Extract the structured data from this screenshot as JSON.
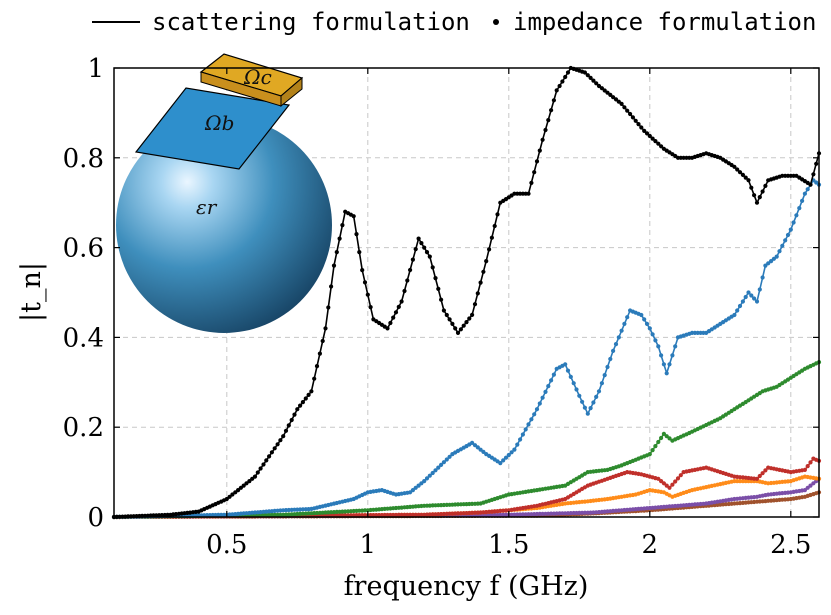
{
  "chart_data": {
    "type": "line",
    "xlabel": "frequency f (GHz)",
    "ylabel": "|t_n|",
    "xlim": [
      0.1,
      2.6
    ],
    "ylim": [
      0,
      1
    ],
    "xticks": [
      0.5,
      1,
      1.5,
      2,
      2.5
    ],
    "yticks": [
      0,
      0.2,
      0.4,
      0.6,
      0.8,
      1
    ],
    "xtick_labels": [
      "0.5",
      "1",
      "1.5",
      "2",
      "2.5"
    ],
    "ytick_labels": [
      "0",
      "0.2",
      "0.4",
      "0.6",
      "0.8",
      "1"
    ],
    "grid": true,
    "legend": {
      "placement": "top, outside plot",
      "entries": [
        {
          "label": "scattering formulation",
          "marker": "line"
        },
        {
          "label": "impedance formulation",
          "marker": "dot"
        }
      ]
    },
    "inset_labels": {
      "omega_c": "Ωc",
      "omega_b": "Ωb",
      "epsilon_r": "εr"
    },
    "series": [
      {
        "color": "#000000",
        "points": [
          [
            0.1,
            0.0
          ],
          [
            0.3,
            0.005
          ],
          [
            0.4,
            0.012
          ],
          [
            0.5,
            0.04
          ],
          [
            0.6,
            0.09
          ],
          [
            0.7,
            0.18
          ],
          [
            0.75,
            0.24
          ],
          [
            0.8,
            0.28
          ],
          [
            0.85,
            0.42
          ],
          [
            0.88,
            0.56
          ],
          [
            0.92,
            0.68
          ],
          [
            0.95,
            0.67
          ],
          [
            0.98,
            0.55
          ],
          [
            1.02,
            0.44
          ],
          [
            1.07,
            0.42
          ],
          [
            1.12,
            0.48
          ],
          [
            1.18,
            0.62
          ],
          [
            1.22,
            0.58
          ],
          [
            1.27,
            0.46
          ],
          [
            1.32,
            0.41
          ],
          [
            1.37,
            0.45
          ],
          [
            1.42,
            0.57
          ],
          [
            1.47,
            0.7
          ],
          [
            1.52,
            0.72
          ],
          [
            1.57,
            0.72
          ],
          [
            1.62,
            0.84
          ],
          [
            1.67,
            0.95
          ],
          [
            1.72,
            1.0
          ],
          [
            1.77,
            0.99
          ],
          [
            1.82,
            0.96
          ],
          [
            1.9,
            0.92
          ],
          [
            1.98,
            0.86
          ],
          [
            2.05,
            0.82
          ],
          [
            2.1,
            0.8
          ],
          [
            2.15,
            0.8
          ],
          [
            2.2,
            0.81
          ],
          [
            2.25,
            0.8
          ],
          [
            2.3,
            0.78
          ],
          [
            2.35,
            0.75
          ],
          [
            2.38,
            0.7
          ],
          [
            2.42,
            0.75
          ],
          [
            2.47,
            0.76
          ],
          [
            2.52,
            0.76
          ],
          [
            2.57,
            0.74
          ],
          [
            2.6,
            0.81
          ]
        ]
      },
      {
        "color": "#2b7bba",
        "points": [
          [
            0.1,
            0.0
          ],
          [
            0.5,
            0.005
          ],
          [
            0.7,
            0.015
          ],
          [
            0.8,
            0.018
          ],
          [
            0.95,
            0.04
          ],
          [
            1.0,
            0.055
          ],
          [
            1.05,
            0.06
          ],
          [
            1.1,
            0.05
          ],
          [
            1.15,
            0.055
          ],
          [
            1.2,
            0.08
          ],
          [
            1.3,
            0.14
          ],
          [
            1.37,
            0.165
          ],
          [
            1.42,
            0.14
          ],
          [
            1.47,
            0.12
          ],
          [
            1.52,
            0.15
          ],
          [
            1.6,
            0.24
          ],
          [
            1.67,
            0.33
          ],
          [
            1.7,
            0.34
          ],
          [
            1.75,
            0.27
          ],
          [
            1.78,
            0.23
          ],
          [
            1.82,
            0.28
          ],
          [
            1.87,
            0.37
          ],
          [
            1.93,
            0.46
          ],
          [
            1.97,
            0.45
          ],
          [
            2.0,
            0.42
          ],
          [
            2.03,
            0.38
          ],
          [
            2.06,
            0.32
          ],
          [
            2.1,
            0.4
          ],
          [
            2.15,
            0.41
          ],
          [
            2.2,
            0.41
          ],
          [
            2.25,
            0.43
          ],
          [
            2.3,
            0.45
          ],
          [
            2.35,
            0.5
          ],
          [
            2.38,
            0.48
          ],
          [
            2.41,
            0.56
          ],
          [
            2.45,
            0.58
          ],
          [
            2.5,
            0.64
          ],
          [
            2.55,
            0.72
          ],
          [
            2.58,
            0.75
          ],
          [
            2.6,
            0.74
          ]
        ]
      },
      {
        "color": "#2e8b2e",
        "points": [
          [
            0.1,
            0.0
          ],
          [
            0.7,
            0.005
          ],
          [
            1.0,
            0.015
          ],
          [
            1.2,
            0.025
          ],
          [
            1.4,
            0.03
          ],
          [
            1.5,
            0.05
          ],
          [
            1.6,
            0.06
          ],
          [
            1.7,
            0.07
          ],
          [
            1.78,
            0.1
          ],
          [
            1.85,
            0.105
          ],
          [
            1.9,
            0.115
          ],
          [
            2.0,
            0.14
          ],
          [
            2.05,
            0.185
          ],
          [
            2.08,
            0.17
          ],
          [
            2.15,
            0.19
          ],
          [
            2.25,
            0.22
          ],
          [
            2.35,
            0.26
          ],
          [
            2.4,
            0.28
          ],
          [
            2.45,
            0.29
          ],
          [
            2.5,
            0.31
          ],
          [
            2.55,
            0.33
          ],
          [
            2.6,
            0.345
          ]
        ]
      },
      {
        "color": "#c0302b",
        "points": [
          [
            0.1,
            0.0
          ],
          [
            1.2,
            0.005
          ],
          [
            1.4,
            0.01
          ],
          [
            1.5,
            0.015
          ],
          [
            1.6,
            0.025
          ],
          [
            1.7,
            0.04
          ],
          [
            1.78,
            0.07
          ],
          [
            1.85,
            0.085
          ],
          [
            1.92,
            0.1
          ],
          [
            1.97,
            0.095
          ],
          [
            2.03,
            0.085
          ],
          [
            2.07,
            0.065
          ],
          [
            2.12,
            0.1
          ],
          [
            2.2,
            0.11
          ],
          [
            2.3,
            0.09
          ],
          [
            2.38,
            0.085
          ],
          [
            2.42,
            0.11
          ],
          [
            2.5,
            0.1
          ],
          [
            2.55,
            0.105
          ],
          [
            2.58,
            0.13
          ],
          [
            2.6,
            0.125
          ]
        ]
      },
      {
        "color": "#ff8c1a",
        "points": [
          [
            0.1,
            0.0
          ],
          [
            1.2,
            0.005
          ],
          [
            1.4,
            0.01
          ],
          [
            1.6,
            0.02
          ],
          [
            1.7,
            0.03
          ],
          [
            1.78,
            0.035
          ],
          [
            1.85,
            0.04
          ],
          [
            1.95,
            0.05
          ],
          [
            2.0,
            0.06
          ],
          [
            2.05,
            0.055
          ],
          [
            2.08,
            0.045
          ],
          [
            2.15,
            0.06
          ],
          [
            2.3,
            0.08
          ],
          [
            2.38,
            0.08
          ],
          [
            2.42,
            0.075
          ],
          [
            2.5,
            0.08
          ],
          [
            2.55,
            0.09
          ],
          [
            2.6,
            0.085
          ]
        ]
      },
      {
        "color": "#7b4fa8",
        "points": [
          [
            0.1,
            0.0
          ],
          [
            1.5,
            0.005
          ],
          [
            1.8,
            0.01
          ],
          [
            2.0,
            0.02
          ],
          [
            2.1,
            0.025
          ],
          [
            2.2,
            0.03
          ],
          [
            2.3,
            0.04
          ],
          [
            2.38,
            0.045
          ],
          [
            2.42,
            0.05
          ],
          [
            2.5,
            0.055
          ],
          [
            2.55,
            0.06
          ],
          [
            2.6,
            0.085
          ]
        ]
      },
      {
        "color": "#a0522d",
        "points": [
          [
            0.1,
            0.0
          ],
          [
            1.6,
            0.003
          ],
          [
            1.8,
            0.008
          ],
          [
            2.0,
            0.015
          ],
          [
            2.1,
            0.02
          ],
          [
            2.2,
            0.025
          ],
          [
            2.3,
            0.03
          ],
          [
            2.4,
            0.035
          ],
          [
            2.5,
            0.04
          ],
          [
            2.55,
            0.045
          ],
          [
            2.6,
            0.055
          ]
        ]
      }
    ]
  }
}
